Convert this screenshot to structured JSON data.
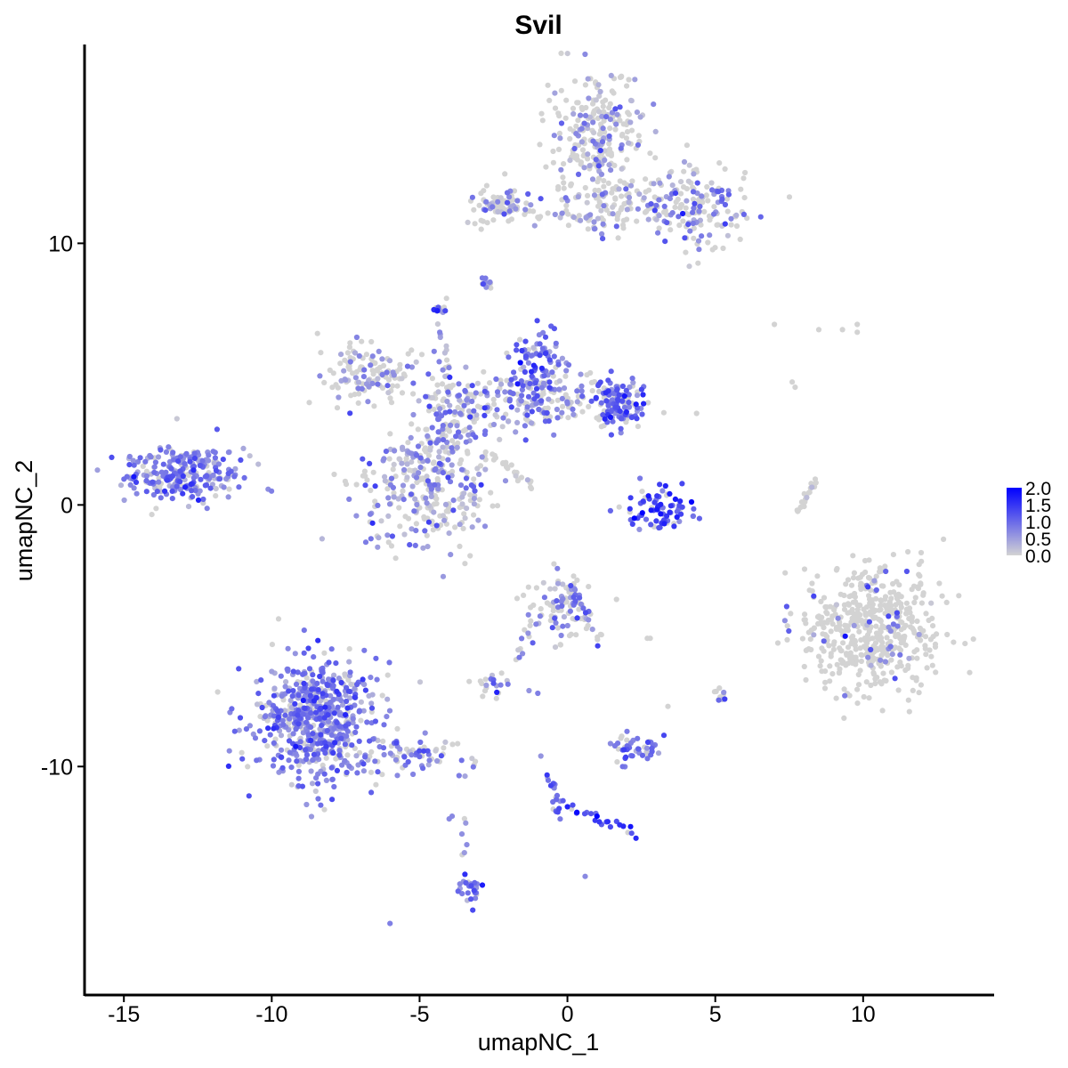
{
  "chart_data": {
    "type": "scatter",
    "title": "Svil",
    "xlabel": "umapNC_1",
    "ylabel": "umapNC_2",
    "xlim": [
      -16.3,
      14.4
    ],
    "ylim": [
      -18.7,
      17.6
    ],
    "xticks": [
      -15,
      -10,
      -5,
      0,
      5,
      10
    ],
    "xtick_labels": [
      "-15",
      "-10",
      "-5",
      "0",
      "5",
      "10"
    ],
    "yticks": [
      10,
      0,
      -10
    ],
    "ytick_labels": [
      "10",
      "0",
      "-10"
    ],
    "grid": false,
    "legend": {
      "position": "right",
      "type": "colorbar",
      "min": 0.0,
      "max": 2.0,
      "ticks": [
        2.0,
        1.5,
        1.0,
        0.5,
        0.0
      ],
      "tick_labels": [
        "2.0",
        "1.5",
        "1.0",
        "0.5",
        "0.0"
      ],
      "low_color": "#d3d3d3",
      "high_color": "#0000ff"
    },
    "clusters": [
      {
        "name": "A",
        "center": [
          -13.0,
          1.2
        ],
        "spread": [
          1.0,
          0.55
        ],
        "n": 260,
        "mean_expr": 0.75,
        "expr_prob": 0.85
      },
      {
        "name": "B",
        "center": [
          -8.5,
          -8.2
        ],
        "spread": [
          1.0,
          1.15
        ],
        "n": 620,
        "mean_expr": 0.8,
        "expr_prob": 0.85
      },
      {
        "name": "B-tail",
        "center": [
          -5.5,
          -9.6
        ],
        "spread": [
          1.1,
          0.35
        ],
        "n": 80,
        "mean_expr": 0.7,
        "expr_prob": 0.7
      },
      {
        "name": "C-head",
        "center": [
          1.0,
          14.0
        ],
        "spread": [
          0.8,
          1.3
        ],
        "n": 280,
        "mean_expr": 0.6,
        "expr_prob": 0.35
      },
      {
        "name": "C-right",
        "center": [
          4.3,
          11.5
        ],
        "spread": [
          0.9,
          0.8
        ],
        "n": 170,
        "mean_expr": 0.7,
        "expr_prob": 0.45
      },
      {
        "name": "C-left",
        "center": [
          -2.3,
          11.4
        ],
        "spread": [
          0.5,
          0.35
        ],
        "n": 70,
        "mean_expr": 0.6,
        "expr_prob": 0.35
      },
      {
        "name": "C-mid",
        "center": [
          1.6,
          11.3
        ],
        "spread": [
          0.8,
          0.5
        ],
        "n": 80,
        "mean_expr": 0.6,
        "expr_prob": 0.35
      },
      {
        "name": "D-main",
        "center": [
          -4.9,
          0.6
        ],
        "spread": [
          1.1,
          1.1
        ],
        "n": 260,
        "mean_expr": 0.6,
        "expr_prob": 0.5
      },
      {
        "name": "D-stem",
        "center": [
          -4.0,
          3.0
        ],
        "spread": [
          0.7,
          1.0
        ],
        "n": 150,
        "mean_expr": 0.65,
        "expr_prob": 0.55
      },
      {
        "name": "D-upper-left",
        "center": [
          -6.8,
          5.0
        ],
        "spread": [
          0.8,
          0.55
        ],
        "n": 130,
        "mean_expr": 0.5,
        "expr_prob": 0.35
      },
      {
        "name": "D-arm",
        "center": [
          -1.2,
          4.0
        ],
        "spread": [
          1.3,
          0.55
        ],
        "n": 190,
        "mean_expr": 0.7,
        "expr_prob": 0.6
      },
      {
        "name": "D-top",
        "center": [
          -0.9,
          5.5
        ],
        "spread": [
          0.5,
          0.6
        ],
        "n": 80,
        "mean_expr": 0.95,
        "expr_prob": 0.8
      },
      {
        "name": "D-right",
        "center": [
          1.8,
          3.9
        ],
        "spread": [
          0.5,
          0.45
        ],
        "n": 120,
        "mean_expr": 1.0,
        "expr_prob": 0.85
      },
      {
        "name": "E",
        "center": [
          3.2,
          -0.2
        ],
        "spread": [
          0.6,
          0.4
        ],
        "n": 80,
        "mean_expr": 1.3,
        "expr_prob": 0.85
      },
      {
        "name": "F",
        "center": [
          10.3,
          -4.8
        ],
        "spread": [
          1.2,
          1.2
        ],
        "n": 520,
        "mean_expr": 0.8,
        "expr_prob": 0.06
      },
      {
        "name": "G",
        "center": [
          -0.3,
          -3.8
        ],
        "spread": [
          0.55,
          0.55
        ],
        "n": 90,
        "mean_expr": 0.7,
        "expr_prob": 0.45
      },
      {
        "name": "H",
        "center": [
          2.3,
          -9.3
        ],
        "spread": [
          0.5,
          0.35
        ],
        "n": 45,
        "mean_expr": 0.8,
        "expr_prob": 0.75
      },
      {
        "name": "I",
        "center": [
          -2.6,
          -6.8
        ],
        "spread": [
          0.3,
          0.2
        ],
        "n": 20,
        "mean_expr": 0.8,
        "expr_prob": 0.6
      },
      {
        "name": "J",
        "center": [
          -3.3,
          -14.7
        ],
        "spread": [
          0.2,
          0.4
        ],
        "n": 25,
        "mean_expr": 0.9,
        "expr_prob": 0.8
      },
      {
        "name": "K",
        "center": [
          -4.3,
          7.4
        ],
        "spread": [
          0.15,
          0.15
        ],
        "n": 12,
        "mean_expr": 0.9,
        "expr_prob": 0.7
      },
      {
        "name": "L",
        "center": [
          -2.8,
          8.5
        ],
        "spread": [
          0.15,
          0.15
        ],
        "n": 10,
        "mean_expr": 0.7,
        "expr_prob": 0.6
      },
      {
        "name": "M",
        "center": [
          5.1,
          -7.3
        ],
        "spread": [
          0.15,
          0.15
        ],
        "n": 10,
        "mean_expr": 0.8,
        "expr_prob": 0.6
      }
    ],
    "paths": [
      {
        "from": [
          -2.8,
          11.3
        ],
        "to": [
          0.6,
          11.0
        ],
        "n": 28,
        "jitter": 0.12,
        "mean_expr": 0.5,
        "expr_prob": 0.25
      },
      {
        "from": [
          -2.6,
          2.0
        ],
        "to": [
          -1.2,
          0.7
        ],
        "n": 25,
        "jitter": 0.1,
        "mean_expr": 0.3,
        "expr_prob": 0.1
      },
      {
        "from": [
          -4.3,
          6.8
        ],
        "to": [
          -4.0,
          4.0
        ],
        "n": 18,
        "jitter": 0.1,
        "mean_expr": 0.5,
        "expr_prob": 0.4
      },
      {
        "from": [
          0.0,
          -3.0
        ],
        "to": [
          1.2,
          -5.4
        ],
        "n": 20,
        "jitter": 0.12,
        "mean_expr": 0.7,
        "expr_prob": 0.5
      },
      {
        "from": [
          -1.2,
          -4.3
        ],
        "to": [
          -1.8,
          -6.0
        ],
        "n": 12,
        "jitter": 0.1,
        "mean_expr": 0.7,
        "expr_prob": 0.5
      },
      {
        "from": [
          -0.6,
          -10.3
        ],
        "to": [
          -0.3,
          -11.9
        ],
        "n": 20,
        "jitter": 0.1,
        "mean_expr": 1.0,
        "expr_prob": 0.8
      },
      {
        "from": [
          -0.2,
          -11.6
        ],
        "to": [
          2.4,
          -12.5
        ],
        "n": 22,
        "jitter": 0.1,
        "mean_expr": 1.5,
        "expr_prob": 0.9
      },
      {
        "from": [
          8.4,
          1.0
        ],
        "to": [
          7.8,
          -0.3
        ],
        "n": 18,
        "jitter": 0.06,
        "mean_expr": 0.2,
        "expr_prob": 0.05
      },
      {
        "from": [
          -3.5,
          -12.0
        ],
        "to": [
          -3.5,
          -13.5
        ],
        "n": 6,
        "jitter": 0.08,
        "mean_expr": 0.8,
        "expr_prob": 0.6
      }
    ],
    "singletons": [
      [
        7.0,
        6.9,
        0.0
      ],
      [
        8.5,
        6.7,
        0.0
      ],
      [
        9.3,
        6.7,
        0.0
      ],
      [
        9.8,
        6.9,
        0.0
      ],
      [
        9.8,
        6.6,
        0.0
      ],
      [
        7.6,
        4.7,
        0.0
      ],
      [
        7.7,
        4.5,
        0.0
      ],
      [
        -6.0,
        -16.0,
        0.8
      ],
      [
        0.6,
        -14.2,
        0.7
      ],
      [
        -0.9,
        -9.6,
        0.6
      ],
      [
        -3.9,
        -11.9,
        0.7
      ],
      [
        -4.0,
        -12.0,
        0.7
      ],
      [
        -1.0,
        -7.2,
        0.8
      ],
      [
        -1.3,
        -7.1,
        0.6
      ],
      [
        2.8,
        -5.1,
        0.0
      ],
      [
        2.7,
        -5.1,
        0.0
      ],
      [
        3.4,
        -7.7,
        0.0
      ],
      [
        -2.4,
        -7.4,
        0.0
      ],
      [
        1.0,
        -11.9,
        2.0
      ],
      [
        0.8,
        -11.8,
        1.2
      ]
    ]
  }
}
